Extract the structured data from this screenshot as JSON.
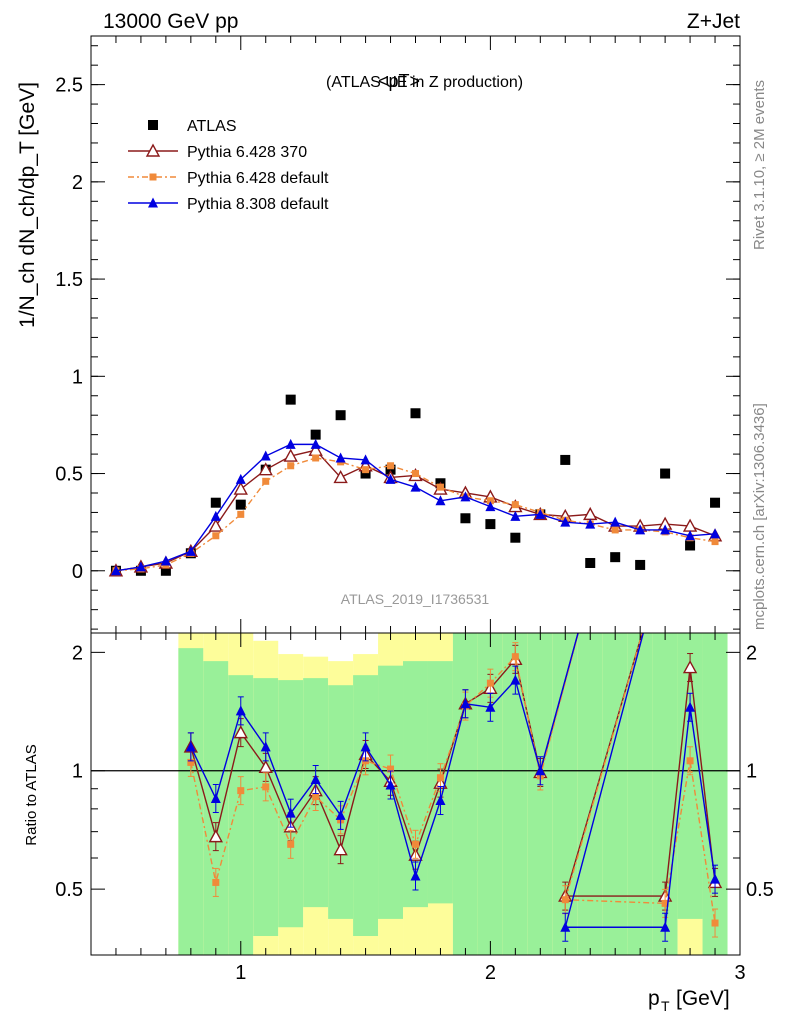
{
  "header": {
    "left": "13000 GeV pp",
    "right": "Z+Jet"
  },
  "side_labels": {
    "rivet": "Rivet 3.1.10, ≥ 2M events",
    "ref": "mcplots.cern.ch [arXiv:1306.3436]"
  },
  "chart_data": {
    "type": "scatter",
    "title": "<pT>",
    "subtitle": "(ATLAS UE in Z production)",
    "watermark": "ATLAS_2019_I1736531",
    "xlabel": "p",
    "xlabel_sub": "T",
    "xlabel_unit": "[GeV]",
    "ylabel": "1/N_ch dN_ch/dp_T [GeV]",
    "ratio_ylabel": "Ratio to ATLAS",
    "xlim": [
      0.4,
      3.0
    ],
    "ylim": [
      -0.32,
      2.75
    ],
    "ratio_ylim": [
      0.34,
      2.24
    ],
    "x_ticks": [
      "1",
      "2",
      "3"
    ],
    "y_ticks": [
      "0",
      "0.5",
      "1",
      "1.5",
      "2",
      "2.5"
    ],
    "ratio_ticks": [
      "0.5",
      "1",
      "2"
    ],
    "legend_position": "top-left",
    "x": [
      0.5,
      0.6,
      0.7,
      0.8,
      0.9,
      1.0,
      1.1,
      1.2,
      1.3,
      1.4,
      1.5,
      1.6,
      1.7,
      1.8,
      1.9,
      2.0,
      2.1,
      2.2,
      2.3,
      2.4,
      2.5,
      2.6,
      2.7,
      2.8,
      2.9
    ],
    "series": [
      {
        "name": "ATLAS",
        "color": "#000000",
        "marker": "square",
        "values": [
          0.0,
          0.0,
          0.0,
          0.09,
          0.35,
          0.34,
          0.52,
          0.88,
          0.7,
          0.8,
          0.5,
          0.52,
          0.81,
          0.45,
          0.27,
          0.24,
          0.17,
          0.29,
          0.57,
          0.04,
          0.07,
          0.03,
          0.5,
          0.13,
          0.35
        ]
      },
      {
        "name": "Pythia 6.428 370",
        "color": "#8b1a1a",
        "marker": "open-triangle",
        "dash": "",
        "values": [
          0.0,
          0.02,
          0.04,
          0.1,
          0.23,
          0.42,
          0.52,
          0.59,
          0.62,
          0.48,
          0.54,
          0.48,
          0.49,
          0.42,
          0.4,
          0.38,
          0.33,
          0.29,
          0.28,
          0.29,
          0.23,
          0.23,
          0.24,
          0.23,
          0.18
        ],
        "ratio": [
          1.15,
          0.68,
          1.25,
          1.02,
          0.72,
          0.89,
          0.63,
          1.1,
          0.94,
          0.61,
          0.93,
          1.48,
          1.62,
          1.92,
          0.99,
          0.48,
          0.48,
          1.83,
          0.52
        ]
      },
      {
        "name": "Pythia 6.428 default",
        "color": "#f08a3a",
        "marker": "filled-square",
        "dash": "6,3,2,3",
        "values": [
          0.0,
          0.01,
          0.03,
          0.09,
          0.18,
          0.29,
          0.46,
          0.54,
          0.58,
          0.56,
          0.52,
          0.54,
          0.5,
          0.43,
          0.38,
          0.36,
          0.34,
          0.3,
          0.26,
          0.24,
          0.21,
          0.21,
          0.2,
          0.17,
          0.15
        ],
        "ratio": [
          1.05,
          0.52,
          0.89,
          0.91,
          0.65,
          0.86,
          0.75,
          1.06,
          1.01,
          0.65,
          0.96,
          1.46,
          1.67,
          1.95,
          0.97,
          0.47,
          0.46,
          1.06,
          0.41
        ]
      },
      {
        "name": "Pythia 8.308 default",
        "color": "#0000e0",
        "marker": "filled-triangle",
        "dash": "",
        "values": [
          0.0,
          0.02,
          0.05,
          0.1,
          0.28,
          0.47,
          0.59,
          0.65,
          0.65,
          0.58,
          0.57,
          0.47,
          0.43,
          0.36,
          0.38,
          0.33,
          0.28,
          0.29,
          0.25,
          0.24,
          0.25,
          0.21,
          0.21,
          0.18,
          0.19
        ],
        "ratio": [
          1.15,
          0.85,
          1.42,
          1.15,
          0.78,
          0.95,
          0.77,
          1.15,
          0.92,
          0.54,
          0.84,
          1.48,
          1.45,
          1.7,
          1.0,
          0.4,
          0.4,
          1.45,
          0.53
        ]
      }
    ],
    "ratio_x": [
      0.8,
      0.9,
      1.0,
      1.1,
      1.2,
      1.3,
      1.4,
      1.5,
      1.6,
      1.7,
      1.8,
      1.9,
      2.0,
      2.1,
      2.2,
      2.3,
      2.7,
      2.8,
      2.9
    ],
    "band_edges": [
      0.75,
      0.85,
      0.95,
      1.05,
      1.15,
      1.25,
      1.35,
      1.45,
      1.55,
      1.65,
      1.75,
      1.85,
      1.95,
      2.05,
      2.15,
      2.25,
      2.35,
      2.45,
      2.55,
      2.65,
      2.75,
      2.85,
      2.95
    ],
    "band_green": [
      [
        0.34,
        2.05
      ],
      [
        0.34,
        1.9
      ],
      [
        0.34,
        1.75
      ],
      [
        0.38,
        1.72
      ],
      [
        0.4,
        1.7
      ],
      [
        0.45,
        1.72
      ],
      [
        0.42,
        1.65
      ],
      [
        0.38,
        1.75
      ],
      [
        0.42,
        1.85
      ],
      [
        0.45,
        1.9
      ],
      [
        0.46,
        1.9
      ],
      [
        0.34,
        2.24
      ],
      [
        0.34,
        2.24
      ],
      [
        0.34,
        2.24
      ],
      [
        0.34,
        2.24
      ],
      [
        0.34,
        2.24
      ],
      [
        0.34,
        2.24
      ],
      [
        0.34,
        2.24
      ],
      [
        0.34,
        2.24
      ],
      [
        0.34,
        2.24
      ],
      [
        0.42,
        2.24
      ],
      [
        0.34,
        2.24
      ]
    ],
    "band_yellow": [
      [
        0.34,
        2.24
      ],
      [
        0.34,
        2.24
      ],
      [
        0.34,
        2.24
      ],
      [
        0.34,
        2.14
      ],
      [
        0.34,
        1.98
      ],
      [
        0.34,
        1.95
      ],
      [
        0.34,
        1.9
      ],
      [
        0.34,
        1.98
      ],
      [
        0.34,
        2.24
      ],
      [
        0.34,
        2.24
      ],
      [
        0.34,
        2.24
      ],
      [
        0.34,
        2.24
      ],
      [
        0.34,
        2.24
      ],
      [
        0.34,
        2.24
      ],
      [
        0.34,
        2.24
      ],
      [
        0.34,
        2.24
      ],
      [
        0.34,
        2.24
      ],
      [
        0.34,
        2.24
      ],
      [
        0.34,
        2.24
      ],
      [
        0.34,
        2.24
      ],
      [
        0.34,
        2.24
      ],
      [
        0.34,
        2.24
      ]
    ]
  }
}
